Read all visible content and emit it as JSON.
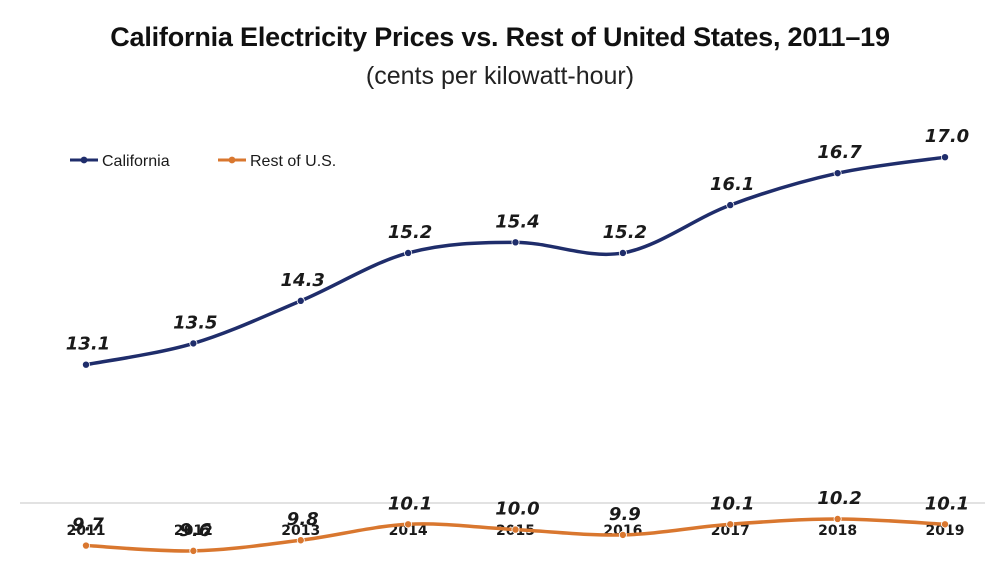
{
  "chart_data": {
    "type": "line",
    "title": "California Electricity Prices vs. Rest of United States, 2011–19",
    "subtitle": "(cents per kilowatt-hour)",
    "categories": [
      "2011",
      "2012",
      "2013",
      "2014",
      "2015",
      "2016",
      "2017",
      "2018",
      "2019"
    ],
    "series": [
      {
        "name": "California",
        "color": "#1f2d6b",
        "values": [
          13.1,
          13.5,
          14.3,
          15.2,
          15.4,
          15.2,
          16.1,
          16.7,
          17.0
        ],
        "labels": [
          "13.1",
          "13.5",
          "14.3",
          "15.2",
          "15.4",
          "15.2",
          "16.1",
          "16.7",
          "17.0"
        ]
      },
      {
        "name": "Rest of U.S.",
        "color": "#d9772f",
        "values": [
          9.7,
          9.6,
          9.8,
          10.1,
          10.0,
          9.9,
          10.1,
          10.2,
          10.1
        ],
        "labels": [
          "9.7",
          "9.6",
          "9.8",
          "10.1",
          "10.0",
          "9.9",
          "10.1",
          "10.2",
          "10.1"
        ]
      }
    ],
    "ylim": [
      8,
      18
    ],
    "smooth": true,
    "grid": false,
    "legend_position": "top-left",
    "axis_line_color": "#d9d9d9"
  }
}
